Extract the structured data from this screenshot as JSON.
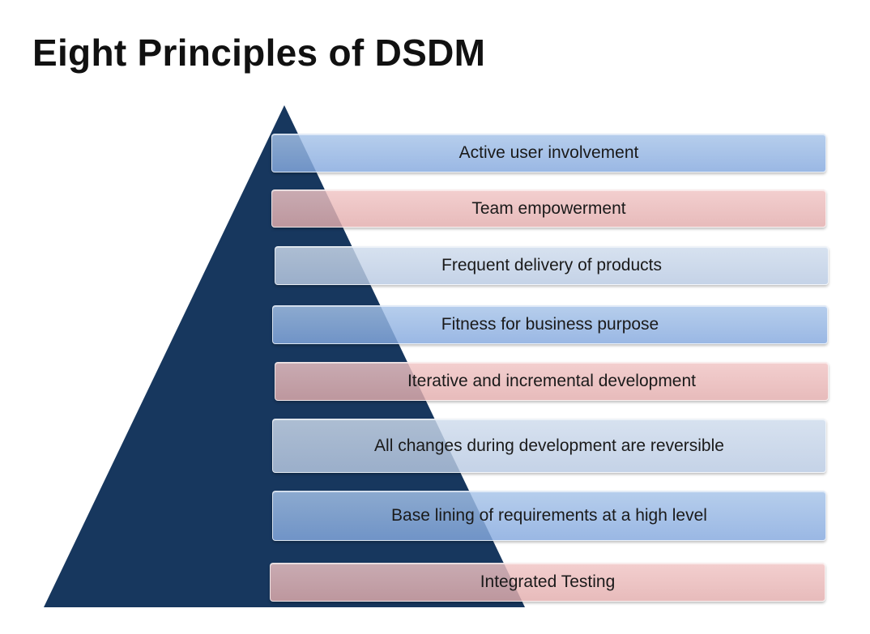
{
  "title": "Eight Principles of DSDM",
  "colors": {
    "pyramid": "#17375e",
    "blue_bar": "#9bb9e4",
    "pink_bar": "#e8baba",
    "light_bar": "#c6d4e8"
  },
  "principles": [
    {
      "label": "Active user involvement",
      "color": "blue"
    },
    {
      "label": "Team empowerment",
      "color": "pink"
    },
    {
      "label": "Frequent delivery of products",
      "color": "light"
    },
    {
      "label": "Fitness for business purpose",
      "color": "blue"
    },
    {
      "label": "Iterative and incremental development",
      "color": "pink"
    },
    {
      "label": "All changes during development are reversible",
      "color": "light"
    },
    {
      "label": "Base lining of requirements at a high level",
      "color": "blue"
    },
    {
      "label": "Integrated Testing",
      "color": "pink"
    }
  ]
}
